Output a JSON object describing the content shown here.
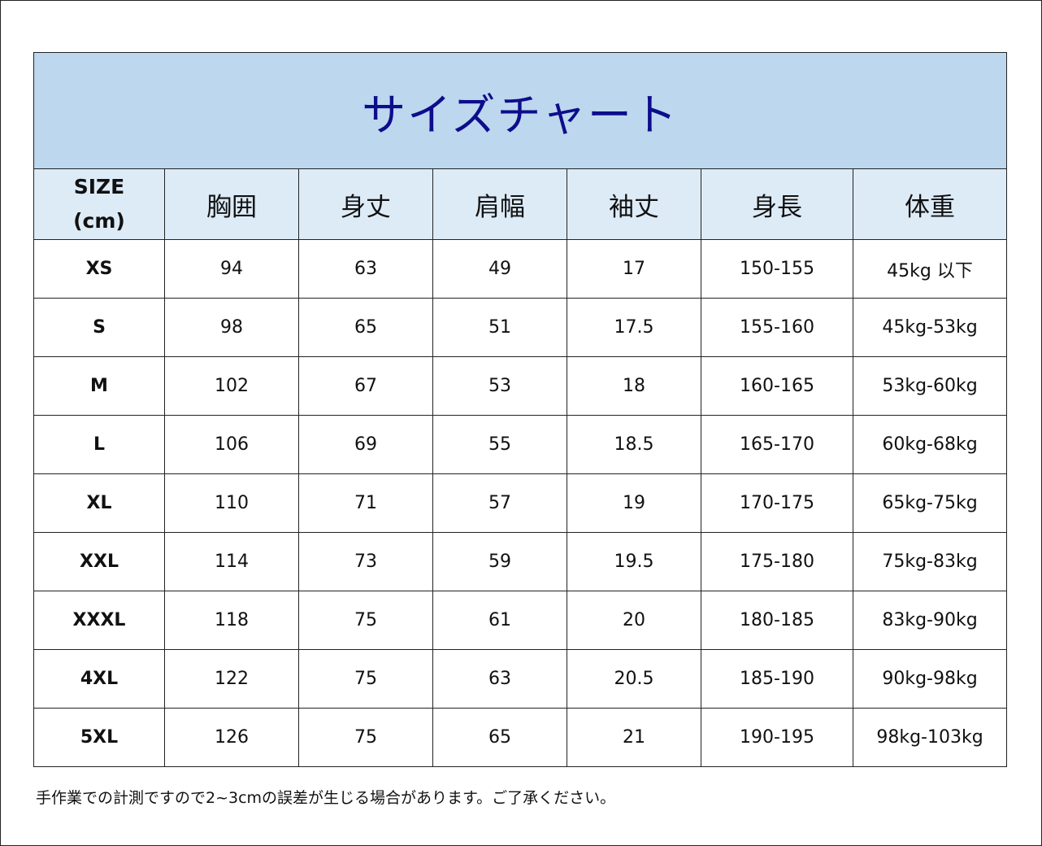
{
  "title": "サイズチャート",
  "headers": {
    "size_line1": "SIZE",
    "size_line2": "(cm)",
    "columns": [
      "胸囲",
      "身丈",
      "肩幅",
      "袖丈",
      "身長",
      "体重"
    ]
  },
  "rows": [
    [
      "XS",
      "94",
      "63",
      "49",
      "17",
      "150-155",
      "45kg 以下"
    ],
    [
      "S",
      "98",
      "65",
      "51",
      "17.5",
      "155-160",
      "45kg-53kg"
    ],
    [
      "M",
      "102",
      "67",
      "53",
      "18",
      "160-165",
      "53kg-60kg"
    ],
    [
      "L",
      "106",
      "69",
      "55",
      "18.5",
      "165-170",
      "60kg-68kg"
    ],
    [
      "XL",
      "110",
      "71",
      "57",
      "19",
      "170-175",
      "65kg-75kg"
    ],
    [
      "XXL",
      "114",
      "73",
      "59",
      "19.5",
      "175-180",
      "75kg-83kg"
    ],
    [
      "XXXL",
      "118",
      "75",
      "61",
      "20",
      "180-185",
      "83kg-90kg"
    ],
    [
      "4XL",
      "122",
      "75",
      "63",
      "20.5",
      "185-190",
      "90kg-98kg"
    ],
    [
      "5XL",
      "126",
      "75",
      "65",
      "21",
      "190-195",
      "98kg-103kg"
    ]
  ],
  "note": "手作業での計測ですので2~3cmの誤差が生じる場合があります。ご了承ください。",
  "colors": {
    "title_bg": "#bdd7ee",
    "header_bg": "#ddebf7",
    "title_text": "#0d0d8c"
  }
}
